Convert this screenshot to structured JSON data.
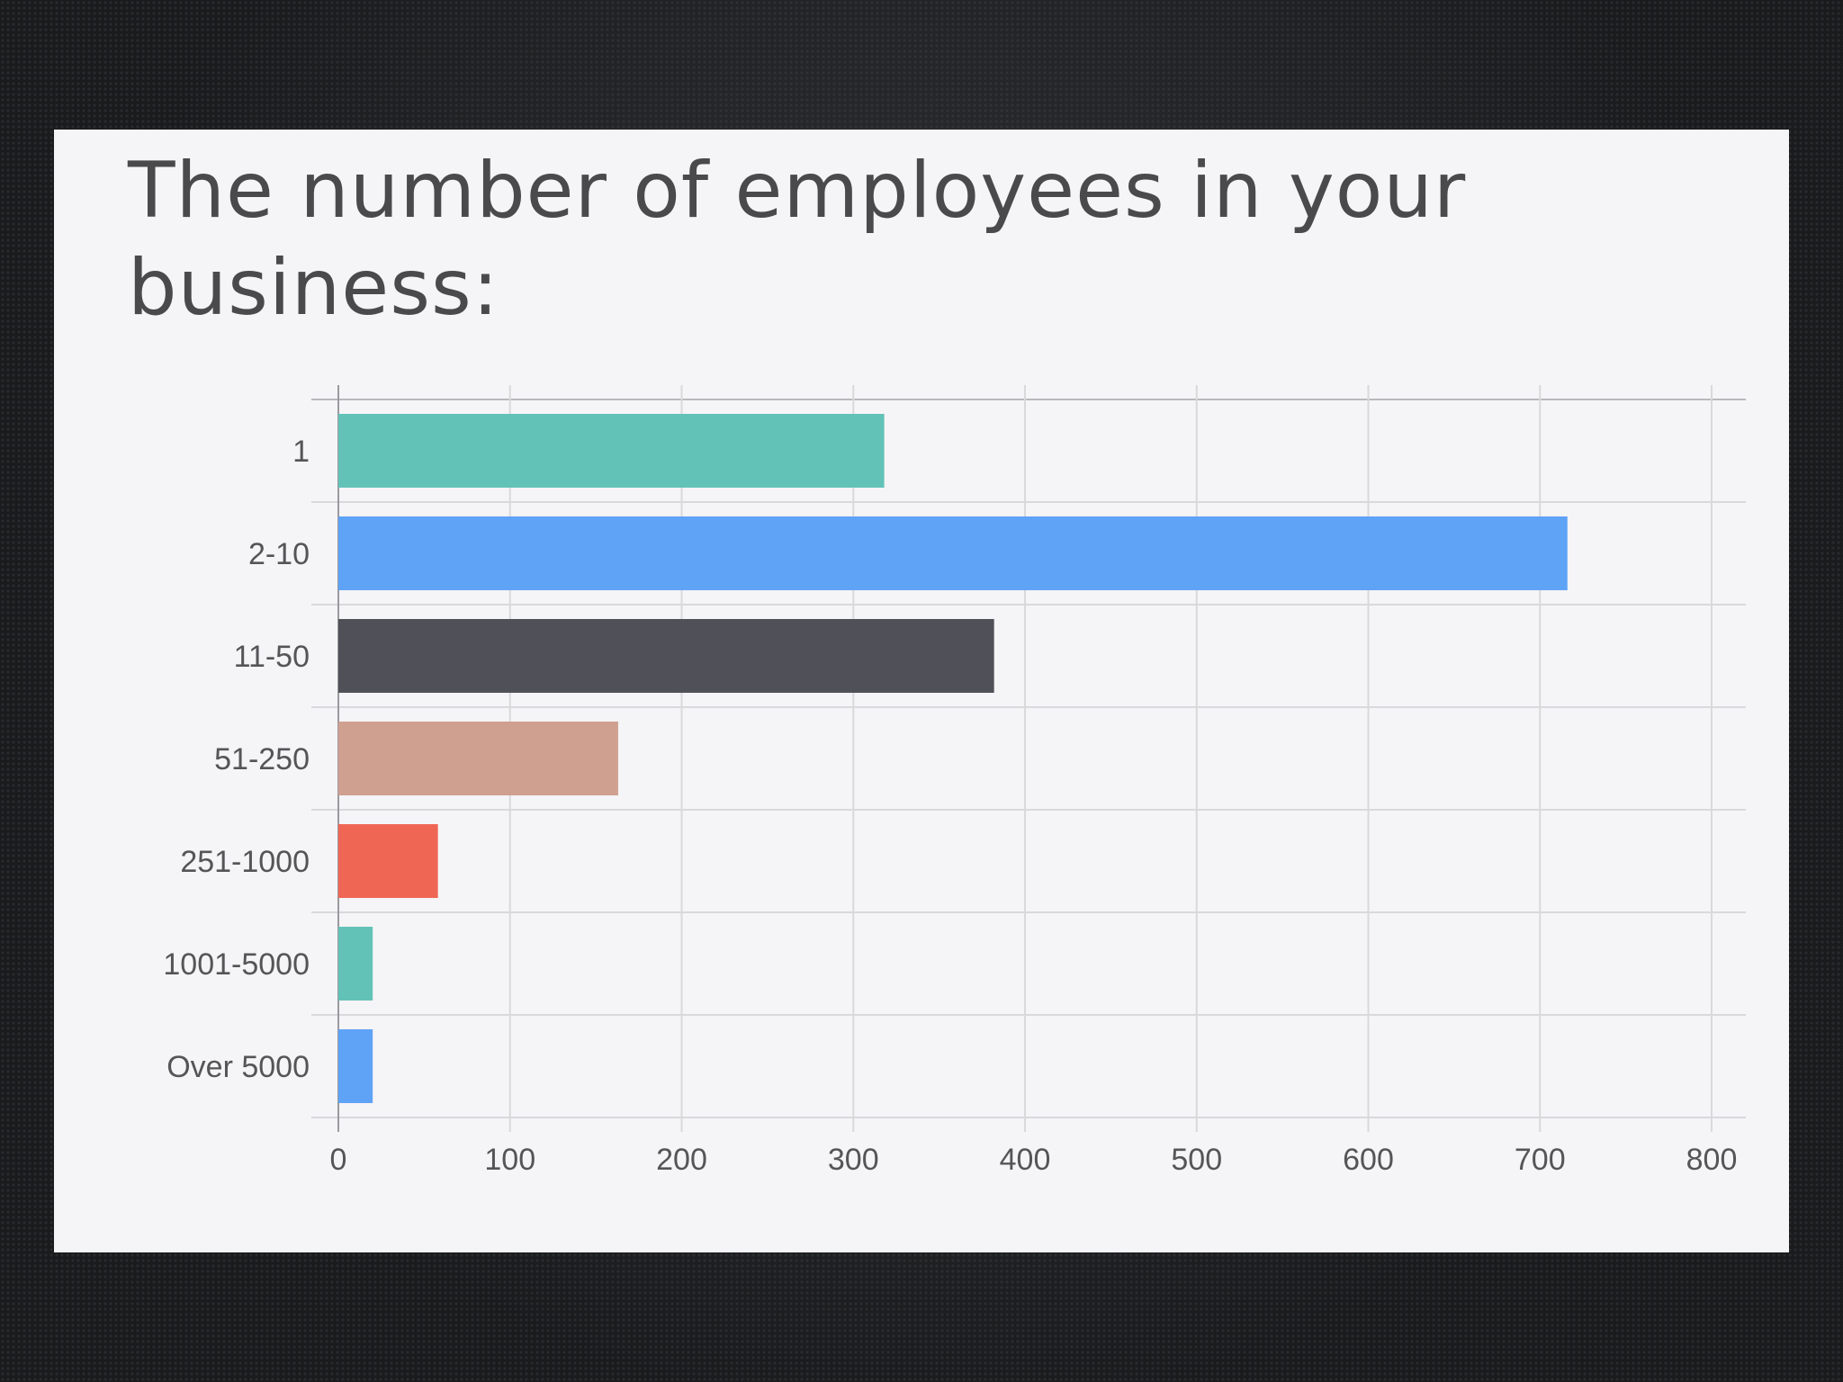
{
  "chart_data": {
    "type": "bar",
    "orientation": "horizontal",
    "title": "The number of employees in your business:",
    "categories": [
      "1",
      "2-10",
      "11-50",
      "51-250",
      "251-1000",
      "1001-5000",
      "Over 5000"
    ],
    "values": [
      318,
      716,
      382,
      163,
      58,
      20,
      20
    ],
    "colors": [
      "#63c2b8",
      "#5fa3f7",
      "#505158",
      "#cf9f90",
      "#ef6655",
      "#63c2b8",
      "#5fa3f7"
    ],
    "xlim": [
      0,
      800
    ],
    "xticks": [
      "0",
      "100",
      "200",
      "300",
      "400",
      "500",
      "600",
      "700",
      "800"
    ],
    "grid": true,
    "legend": "none"
  }
}
